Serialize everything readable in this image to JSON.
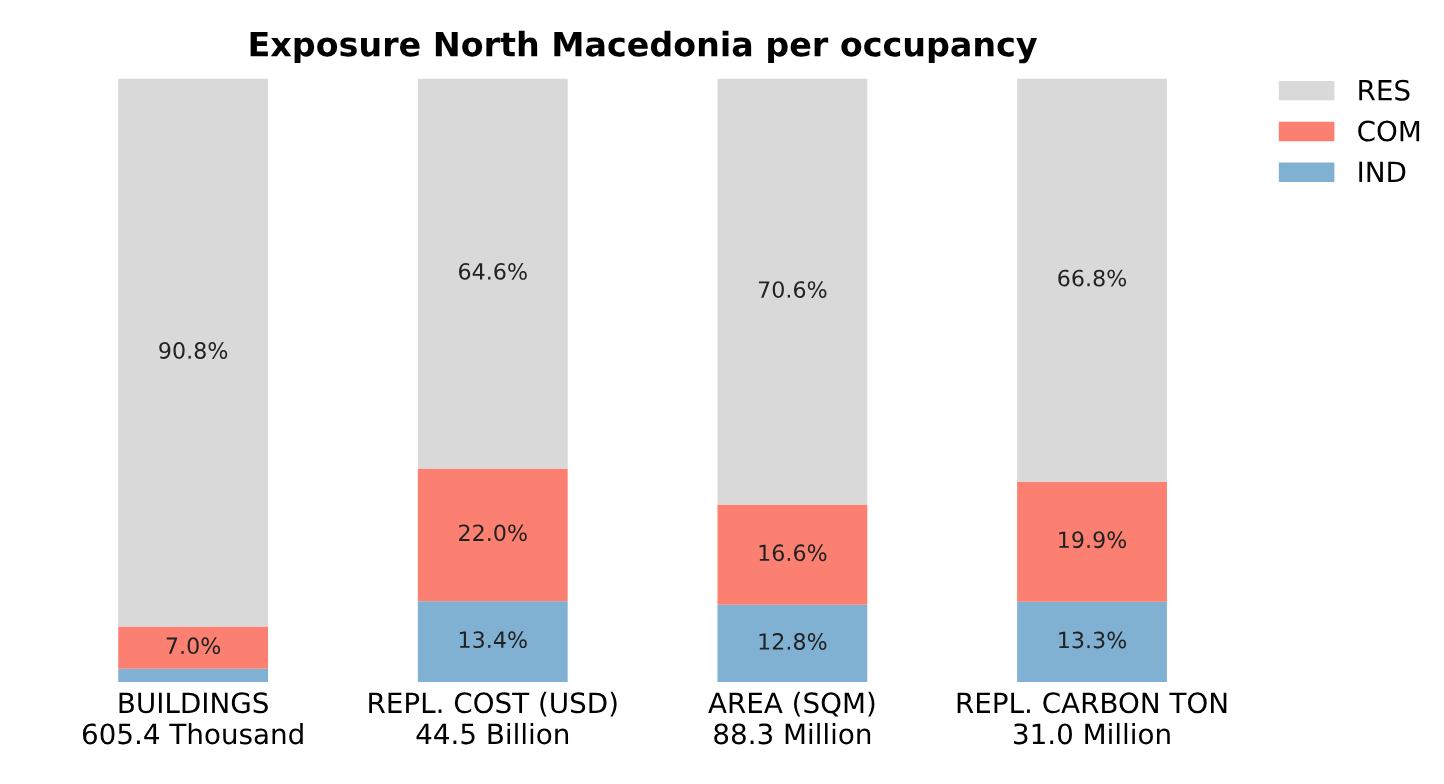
{
  "chart_data": {
    "type": "bar",
    "title": "Exposure North Macedonia per occupancy",
    "stacked": true,
    "legend": "top right",
    "categories": [
      "BUILDINGS\n605.4 Thousand",
      "REPL. COST (USD)\n44.5 Billion",
      "AREA (SQM)\n88.3 Million",
      "REPL. CARBON TON\n31.0 Million"
    ],
    "series": [
      {
        "name": "IND",
        "color": "#80b1d3",
        "values": [
          2.2,
          13.4,
          12.8,
          13.3
        ],
        "value_labels": [
          null,
          "13.4%",
          "12.8%",
          "13.3%"
        ]
      },
      {
        "name": "COM",
        "color": "#fb8072",
        "values": [
          7.0,
          22.0,
          16.6,
          19.9
        ],
        "value_labels": [
          "7.0%",
          "22.0%",
          "16.6%",
          "19.9%"
        ]
      },
      {
        "name": "RES",
        "color": "#d9d9d9",
        "values": [
          90.8,
          64.6,
          70.6,
          66.8
        ],
        "value_labels": [
          "90.8%",
          "64.6%",
          "70.6%",
          "66.8%"
        ]
      }
    ]
  }
}
